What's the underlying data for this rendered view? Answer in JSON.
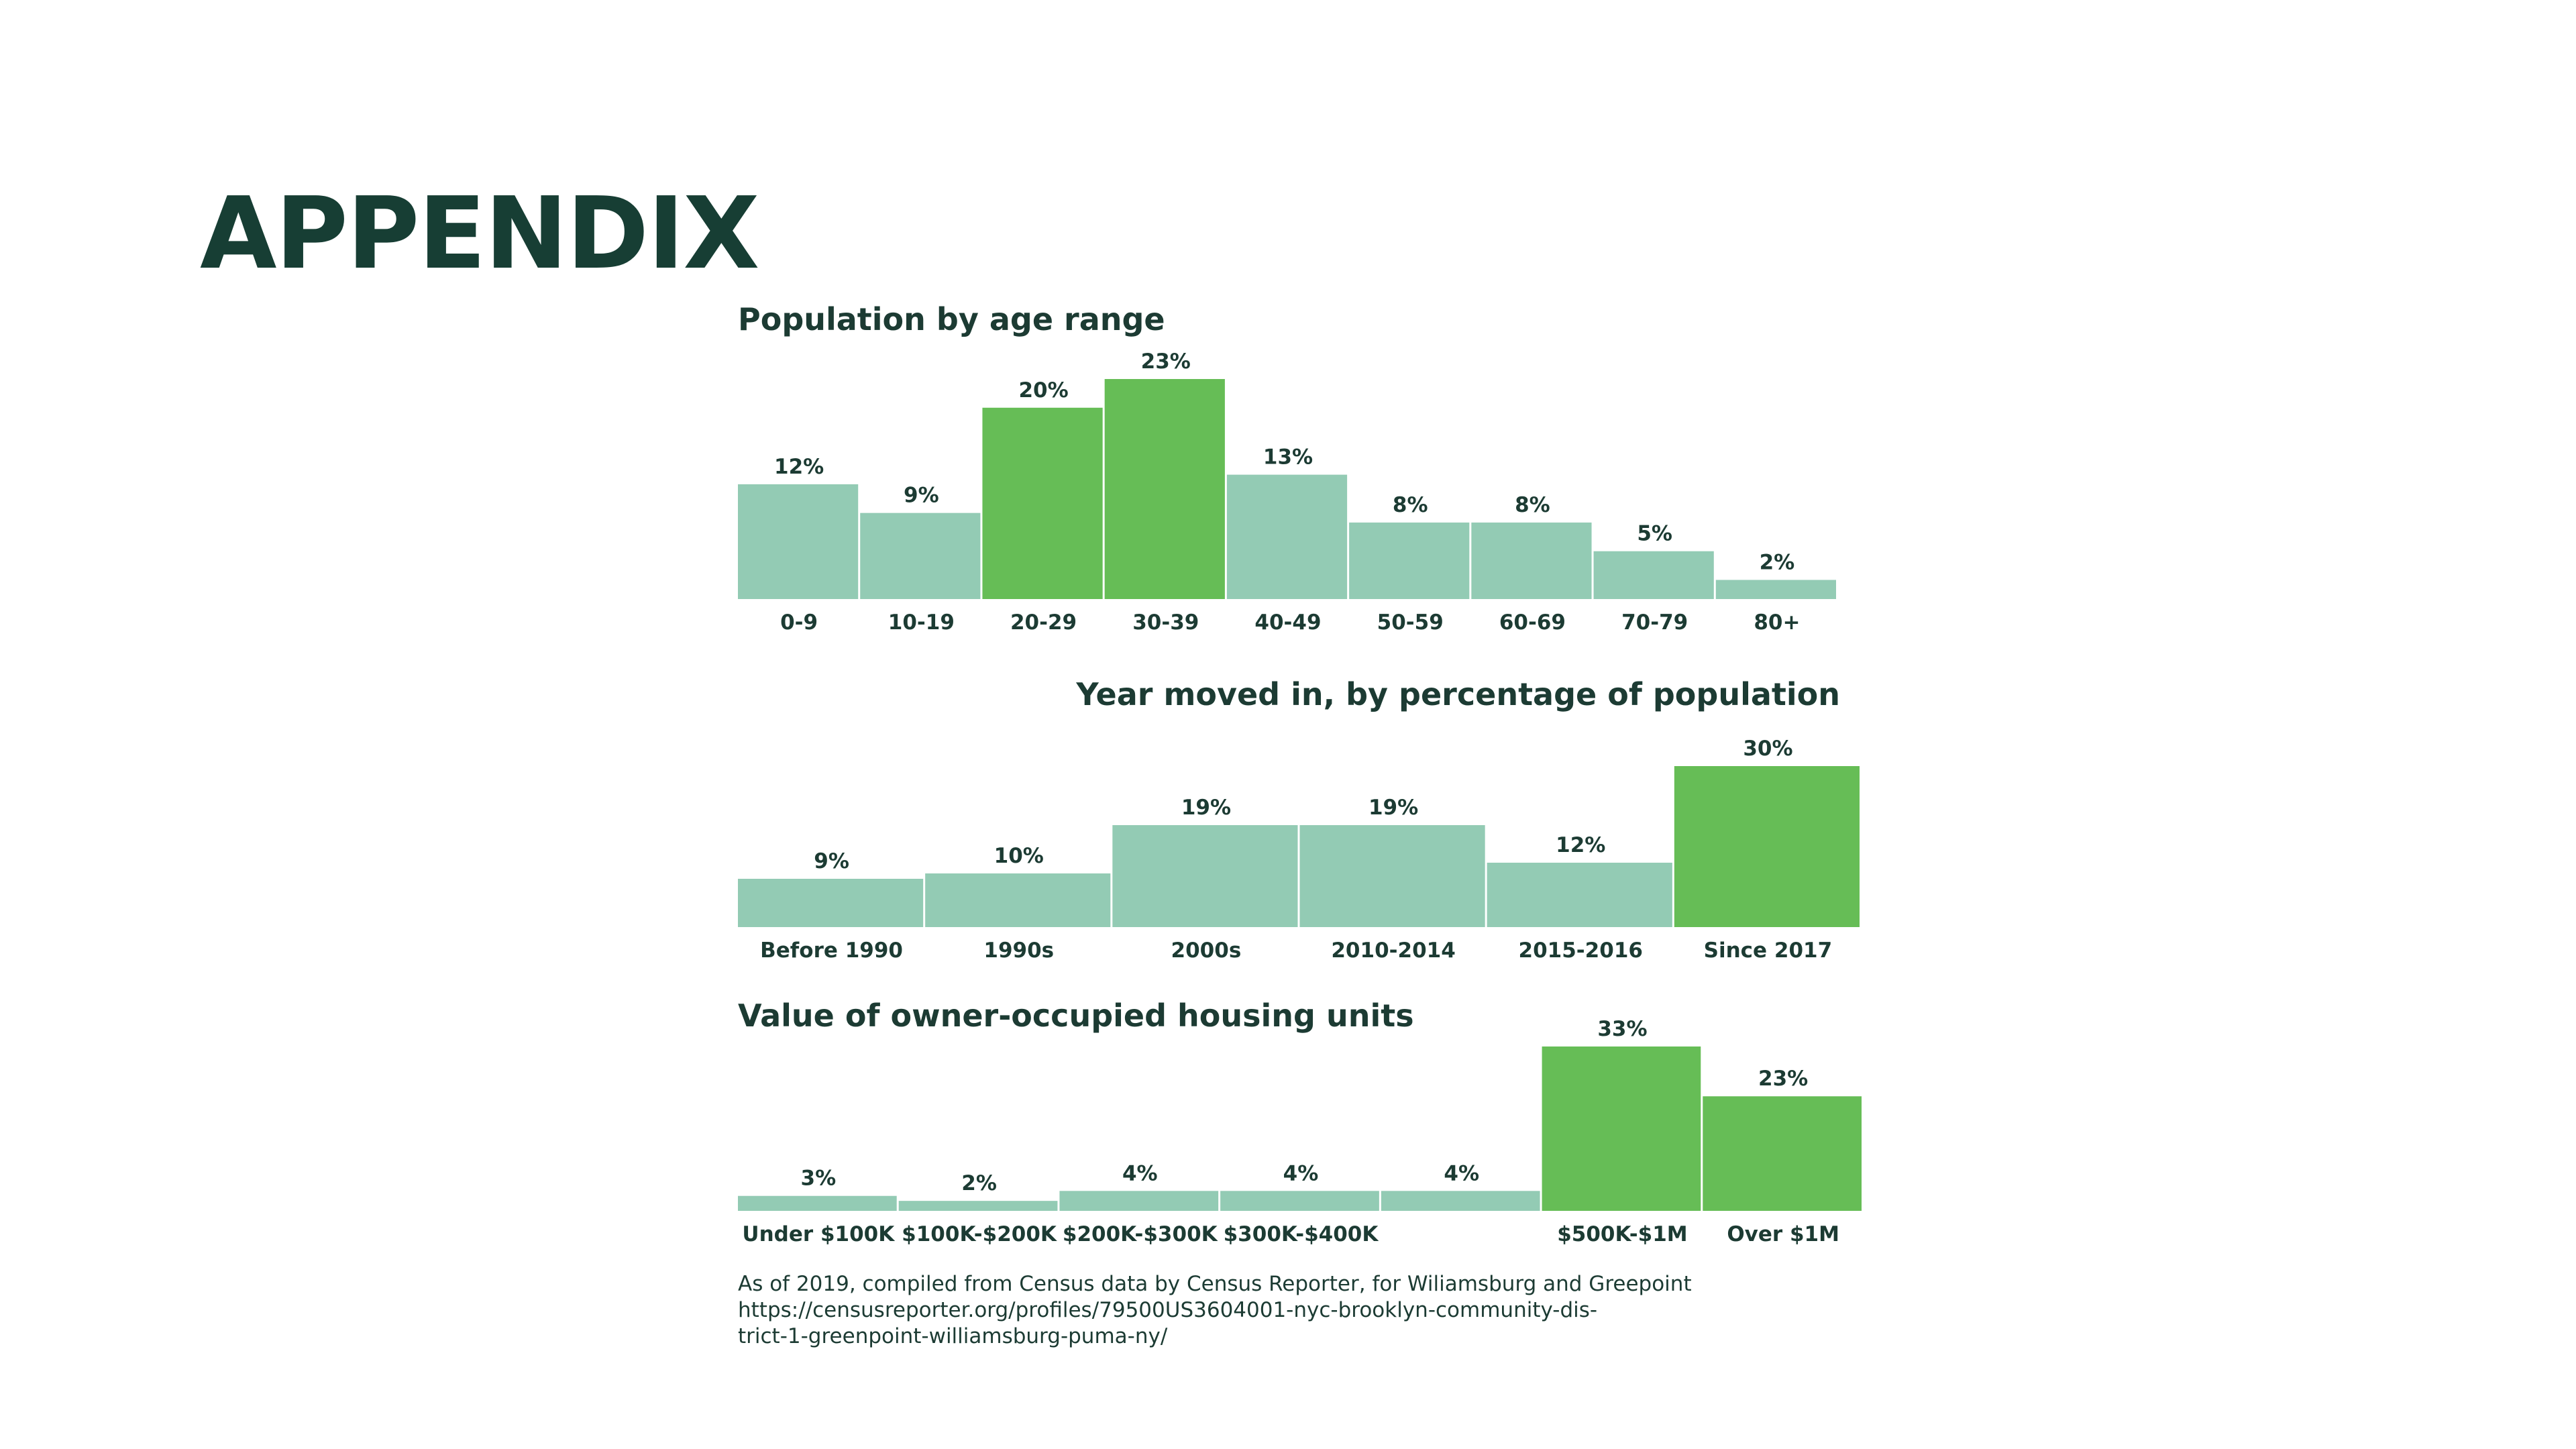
{
  "page": {
    "title": "APPENDIX"
  },
  "colors": {
    "highlight": "#66bd56",
    "default": "#93cbb4",
    "text": "#1c3b33",
    "title": "#173e34"
  },
  "chart_data": [
    {
      "type": "bar",
      "title": "Population by age range",
      "categories": [
        "0-9",
        "10-19",
        "20-29",
        "30-39",
        "40-49",
        "50-59",
        "60-69",
        "70-79",
        "80+"
      ],
      "values": [
        12,
        9,
        20,
        23,
        13,
        8,
        8,
        5,
        2
      ],
      "value_labels": [
        "12%",
        "9%",
        "20%",
        "23%",
        "13%",
        "8%",
        "8%",
        "5%",
        "2%"
      ],
      "highlighted": [
        "20-29",
        "30-39"
      ],
      "ylim": [
        0,
        23
      ]
    },
    {
      "type": "bar",
      "title": "Year moved in, by percentage of population",
      "categories": [
        "Before 1990",
        "1990s",
        "2000s",
        "2010-2014",
        "2015-2016",
        "Since 2017"
      ],
      "values": [
        9,
        10,
        19,
        19,
        12,
        30
      ],
      "value_labels": [
        "9%",
        "10%",
        "19%",
        "19%",
        "12%",
        "30%"
      ],
      "highlighted": [
        "Since 2017"
      ],
      "ylim": [
        0,
        30
      ]
    },
    {
      "type": "bar",
      "title": "Value of owner-occupied housing units",
      "categories": [
        "Under $100K",
        "$100K-$200K",
        "$200K-$300K",
        "$300K-$400K",
        "",
        "$500K-$1M",
        "Over $1M"
      ],
      "values": [
        3,
        2,
        4,
        4,
        4,
        33,
        23
      ],
      "value_labels": [
        "3%",
        "2%",
        "4%",
        "4%",
        "4%",
        "33%",
        "23%"
      ],
      "highlighted": [
        "$500K-$1M",
        "Over $1M"
      ],
      "ylim": [
        0,
        33
      ]
    }
  ],
  "footnote": {
    "line1": "As of 2019, compiled from Census data by Census Reporter, for Wiliamsburg and Greepoint",
    "line2": "https://censusreporter.org/profiles/79500US3604001-nyc-brooklyn-community-dis-",
    "line3": "trict-1-greenpoint-williamsburg-puma-ny/"
  }
}
